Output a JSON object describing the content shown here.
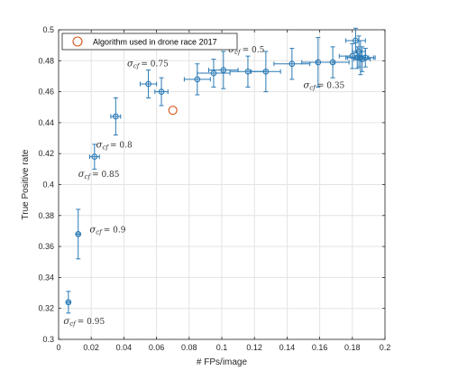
{
  "chart_data": {
    "type": "scatter",
    "title": "",
    "xlabel": "# FPs/image",
    "ylabel": "True Positive rate",
    "xlim": [
      0,
      0.2
    ],
    "ylim": [
      0.3,
      0.5
    ],
    "xticks": [
      "0",
      "0.02",
      "0.04",
      "0.06",
      "0.08",
      "0.1",
      "0.12",
      "0.14",
      "0.16",
      "0.18",
      "0.2"
    ],
    "yticks": [
      "0.3",
      "0.32",
      "0.34",
      "0.36",
      "0.38",
      "0.4",
      "0.42",
      "0.44",
      "0.46",
      "0.48",
      "0.5"
    ],
    "grid": true,
    "legend": {
      "placement": "top-left",
      "entries": [
        {
          "label": "Algorithm used in drone race 2017",
          "color": "#d95319",
          "marker": "circle"
        }
      ]
    },
    "series": [
      {
        "color": "#2a7ab5",
        "marker": "circle",
        "points": [
          {
            "x": 0.006,
            "y": 0.324,
            "xerr": 0.001,
            "yerr": 0.007
          },
          {
            "x": 0.012,
            "y": 0.368,
            "xerr": 0.001,
            "yerr": 0.016
          },
          {
            "x": 0.022,
            "y": 0.418,
            "xerr": 0.003,
            "yerr": 0.008
          },
          {
            "x": 0.035,
            "y": 0.444,
            "xerr": 0.003,
            "yerr": 0.012
          },
          {
            "x": 0.055,
            "y": 0.465,
            "xerr": 0.005,
            "yerr": 0.009
          },
          {
            "x": 0.063,
            "y": 0.46,
            "xerr": 0.004,
            "yerr": 0.009
          },
          {
            "x": 0.085,
            "y": 0.468,
            "xerr": 0.008,
            "yerr": 0.01
          },
          {
            "x": 0.095,
            "y": 0.472,
            "xerr": 0.01,
            "yerr": 0.009
          },
          {
            "x": 0.101,
            "y": 0.474,
            "xerr": 0.009,
            "yerr": 0.012
          },
          {
            "x": 0.116,
            "y": 0.473,
            "xerr": 0.011,
            "yerr": 0.01
          },
          {
            "x": 0.127,
            "y": 0.473,
            "xerr": 0.009,
            "yerr": 0.013
          },
          {
            "x": 0.143,
            "y": 0.478,
            "xerr": 0.011,
            "yerr": 0.01
          },
          {
            "x": 0.159,
            "y": 0.479,
            "xerr": 0.01,
            "yerr": 0.016
          },
          {
            "x": 0.168,
            "y": 0.479,
            "xerr": 0.01,
            "yerr": 0.01
          },
          {
            "x": 0.18,
            "y": 0.483,
            "xerr": 0.008,
            "yerr": 0.008
          },
          {
            "x": 0.182,
            "y": 0.493,
            "xerr": 0.006,
            "yerr": 0.008
          },
          {
            "x": 0.183,
            "y": 0.482,
            "xerr": 0.007,
            "yerr": 0.007
          },
          {
            "x": 0.184,
            "y": 0.486,
            "xerr": 0.004,
            "yerr": 0.01
          },
          {
            "x": 0.185,
            "y": 0.482,
            "xerr": 0.008,
            "yerr": 0.011
          },
          {
            "x": 0.186,
            "y": 0.481,
            "xerr": 0.005,
            "yerr": 0.008
          },
          {
            "x": 0.188,
            "y": 0.482,
            "xerr": 0.006,
            "yerr": 0.006
          }
        ]
      },
      {
        "name": "Algorithm used in drone race 2017",
        "color": "#d95319",
        "marker": "circle",
        "points": [
          {
            "x": 0.07,
            "y": 0.448
          }
        ]
      }
    ],
    "annotations": [
      {
        "text_sym": "σ",
        "text_sub": "cf",
        "text_val": "= 0.95",
        "x": 0.003,
        "y": 0.31
      },
      {
        "text_sym": "σ",
        "text_sub": "cf",
        "text_val": "= 0.9",
        "x": 0.019,
        "y": 0.369
      },
      {
        "text_sym": "σ",
        "text_sub": "cf",
        "text_val": "= 0.85",
        "x": 0.012,
        "y": 0.405
      },
      {
        "text_sym": "σ",
        "text_sub": "cf",
        "text_val": "= 0.8",
        "x": 0.023,
        "y": 0.424
      },
      {
        "text_sym": "σ",
        "text_sub": "cf",
        "text_val": "= 0.75",
        "x": 0.042,
        "y": 0.4765
      },
      {
        "text_sym": "σ",
        "text_sub": "cf",
        "text_val": "= 0.5",
        "x": 0.104,
        "y": 0.4855
      },
      {
        "text_sym": "σ",
        "text_sub": "cf",
        "text_val": "= 0.35",
        "x": 0.15,
        "y": 0.4625
      }
    ]
  }
}
